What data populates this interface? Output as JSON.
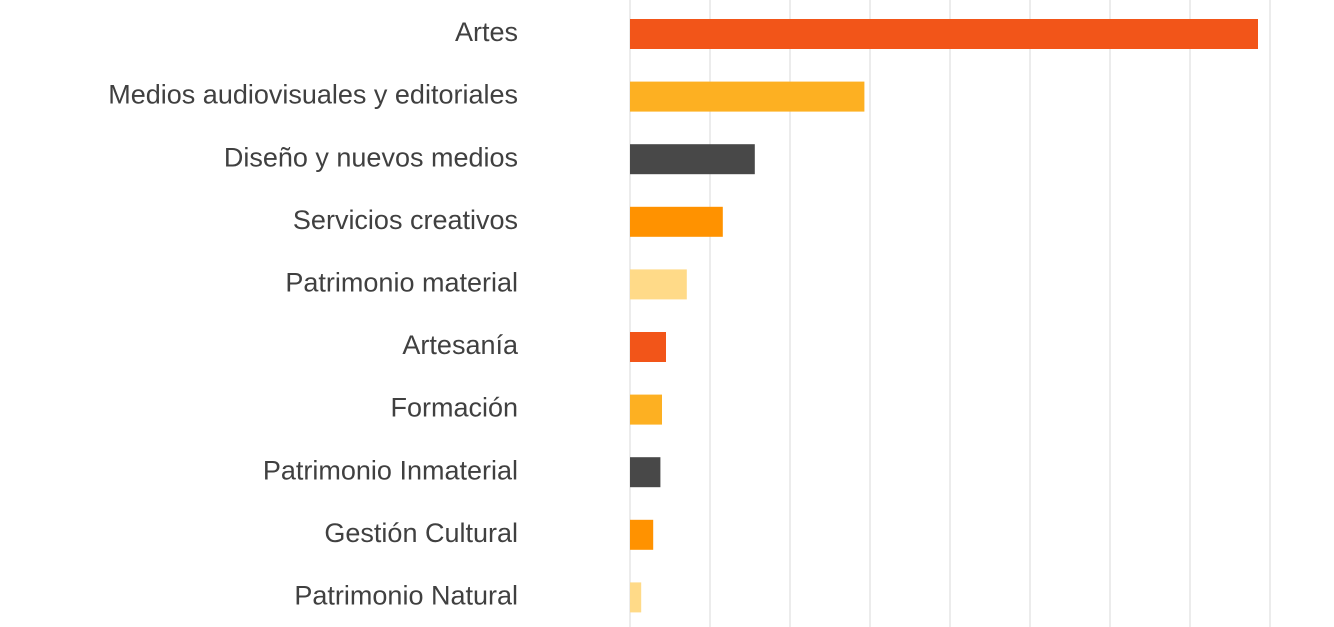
{
  "chart_data": {
    "type": "barh",
    "categories": [
      "Artes",
      "Medios audiovisuales y editoriales",
      "Diseño y nuevos medios",
      "Servicios creativos",
      "Patrimonio material",
      "Artesanía",
      "Formación",
      "Patrimonio Inmaterial",
      "Gestión Cultural",
      "Patrimonio Natural"
    ],
    "values": [
      7.85,
      2.93,
      1.56,
      1.16,
      0.71,
      0.45,
      0.4,
      0.38,
      0.29,
      0.14
    ],
    "colors": [
      "#f25519",
      "#fdb022",
      "#484848",
      "#ff9200",
      "#ffda88",
      "#f25519",
      "#fdb022",
      "#484848",
      "#ff9200",
      "#ffda88"
    ],
    "xlim": [
      0,
      8
    ],
    "xticks": [
      0,
      1,
      2,
      3,
      4,
      5,
      6,
      7,
      8
    ],
    "grid": true
  }
}
